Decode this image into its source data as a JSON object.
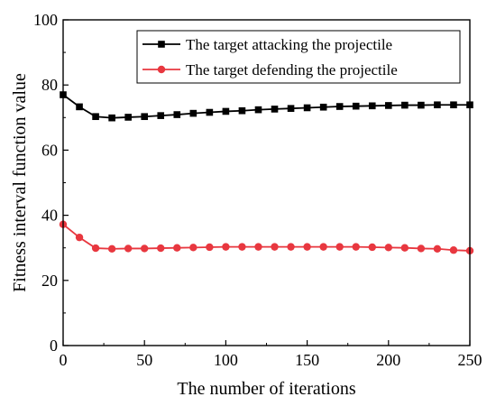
{
  "chart_data": {
    "type": "line",
    "xlabel": "The number of iterations",
    "ylabel": "Fitness interval function value",
    "xlim": [
      0,
      250
    ],
    "ylim": [
      0,
      100
    ],
    "xticks": [
      0,
      50,
      100,
      150,
      200,
      250
    ],
    "yticks": [
      0,
      20,
      40,
      60,
      80,
      100
    ],
    "grid": false,
    "legend_position": "top-right",
    "x": [
      0,
      10,
      20,
      30,
      40,
      50,
      60,
      70,
      80,
      90,
      100,
      110,
      120,
      130,
      140,
      150,
      160,
      170,
      180,
      190,
      200,
      210,
      220,
      230,
      240,
      250
    ],
    "series": [
      {
        "name": "The target attacking the projectile",
        "color": "#000000",
        "marker": "square",
        "values": [
          77.0,
          73.3,
          70.3,
          69.9,
          70.1,
          70.3,
          70.6,
          70.9,
          71.3,
          71.6,
          71.9,
          72.1,
          72.4,
          72.6,
          72.8,
          73.0,
          73.2,
          73.4,
          73.5,
          73.6,
          73.7,
          73.8,
          73.8,
          73.9,
          73.9,
          73.9
        ]
      },
      {
        "name": "The target defending the projectile",
        "color": "#e8373f",
        "marker": "circle",
        "values": [
          37.2,
          33.2,
          29.9,
          29.7,
          29.8,
          29.8,
          29.9,
          30.0,
          30.1,
          30.2,
          30.3,
          30.3,
          30.3,
          30.3,
          30.3,
          30.3,
          30.3,
          30.3,
          30.3,
          30.2,
          30.1,
          30.0,
          29.8,
          29.7,
          29.3,
          29.1
        ]
      }
    ]
  }
}
